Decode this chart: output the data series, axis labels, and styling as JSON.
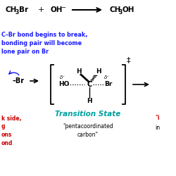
{
  "bg_color": "#ffffff",
  "blue_color": "#1a1aff",
  "red_color": "#cc0000",
  "ts_color": "#00a0a0",
  "blue_text_lines": [
    "C–Br bond begins to break,",
    "bonding pair will become",
    "lone pair on Br"
  ],
  "red_text_lines": [
    "k side,",
    "g",
    "ons",
    "ond"
  ],
  "transition_state_label": "Transition State",
  "figsize": [
    2.5,
    2.5
  ],
  "dpi": 100
}
